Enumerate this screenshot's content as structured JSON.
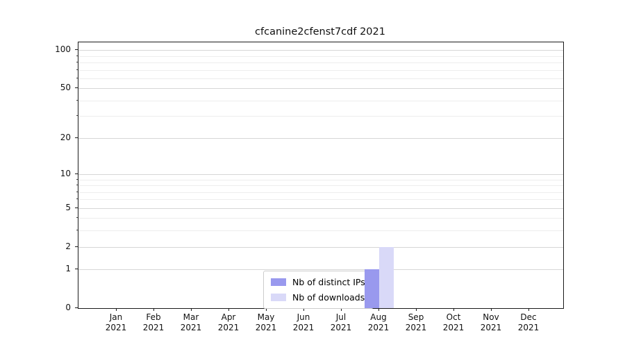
{
  "title": "cfcanine2cfenst7cdf 2021",
  "chart_data": {
    "type": "bar",
    "title": "cfcanine2cfenst7cdf 2021",
    "xlabel": "",
    "ylabel": "",
    "categories": [
      "Jan 2021",
      "Feb 2021",
      "Mar 2021",
      "Apr 2021",
      "May 2021",
      "Jun 2021",
      "Jul 2021",
      "Aug 2021",
      "Sep 2021",
      "Oct 2021",
      "Nov 2021",
      "Dec 2021"
    ],
    "series": [
      {
        "name": "Nb of distinct IPs",
        "color": "#9999ee",
        "values": [
          0,
          0,
          0,
          0,
          0,
          0,
          0,
          1,
          0,
          0,
          0,
          0
        ]
      },
      {
        "name": "Nb of downloads",
        "color": "#d9d9f8",
        "values": [
          0,
          0,
          0,
          0,
          0,
          0,
          0,
          2,
          0,
          0,
          0,
          0
        ]
      }
    ],
    "yscale": "log1p",
    "y_ticks": [
      0,
      1,
      2,
      5,
      10,
      20,
      50,
      100
    ],
    "y_minor_ticks": [
      3,
      4,
      6,
      7,
      8,
      9,
      30,
      40,
      60,
      70,
      80,
      90
    ],
    "ylim": [
      0,
      115
    ],
    "grid": "on",
    "legend_position": "lower center inside",
    "colors": {
      "grid_major": "#d6d6d6",
      "grid_minor": "#ededed",
      "axis": "#1a1a1a",
      "background": "#ffffff"
    }
  }
}
